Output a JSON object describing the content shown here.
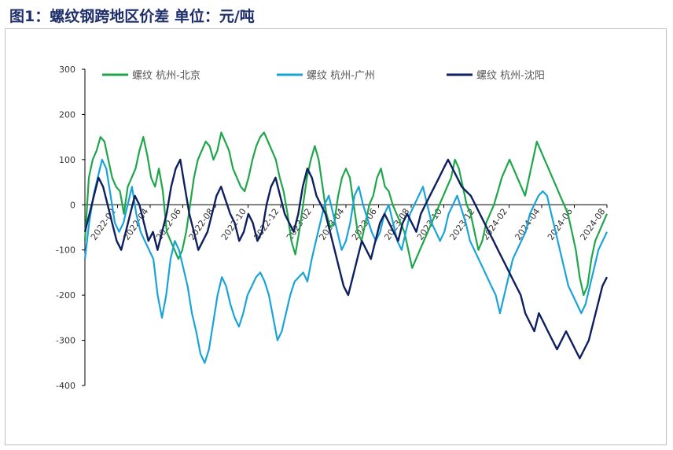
{
  "title": "图1：螺纹钢跨地区价差   单位：元/吨",
  "chart_data": {
    "type": "line",
    "ylim": [
      -400,
      300
    ],
    "yticks": [
      300,
      200,
      100,
      0,
      -100,
      -200,
      -300,
      -400
    ],
    "xticks": [
      "2022-02",
      "2022-04",
      "2022-06",
      "2022-08",
      "2022-10",
      "2022-12",
      "2023-02",
      "2023-04",
      "2023-06",
      "2023-08",
      "2023-10",
      "2023-12",
      "2024-02",
      "2024-04",
      "2024-06",
      "2024-08"
    ],
    "grid": false,
    "legend": "top",
    "series": [
      {
        "name": "螺纹 杭州-北京",
        "color": "#1fa64a",
        "values": [
          -80,
          60,
          100,
          120,
          150,
          140,
          100,
          60,
          40,
          30,
          -20,
          40,
          60,
          80,
          120,
          150,
          110,
          60,
          40,
          80,
          30,
          -60,
          -80,
          -100,
          -120,
          -100,
          -60,
          0,
          60,
          100,
          120,
          140,
          130,
          100,
          120,
          160,
          140,
          120,
          80,
          60,
          40,
          30,
          60,
          100,
          130,
          150,
          160,
          140,
          120,
          100,
          60,
          30,
          -20,
          -80,
          -110,
          -60,
          0,
          60,
          100,
          130,
          100,
          40,
          -20,
          -50,
          -40,
          20,
          60,
          80,
          60,
          0,
          -60,
          -80,
          -40,
          0,
          20,
          60,
          80,
          40,
          30,
          0,
          -20,
          -40,
          -60,
          -100,
          -140,
          -120,
          -100,
          -80,
          -60,
          -40,
          -20,
          0,
          20,
          40,
          60,
          100,
          80,
          40,
          0,
          -20,
          -60,
          -100,
          -80,
          -40,
          -20,
          0,
          30,
          60,
          80,
          100,
          80,
          60,
          40,
          20,
          60,
          100,
          140,
          120,
          100,
          80,
          60,
          40,
          20,
          0,
          -20,
          -60,
          -100,
          -160,
          -200,
          -180,
          -120,
          -80,
          -60,
          -40,
          -20
        ]
      },
      {
        "name": "螺纹 杭州-广州",
        "color": "#1aa3d9",
        "values": [
          -120,
          -40,
          20,
          60,
          100,
          80,
          20,
          -40,
          -60,
          -40,
          0,
          40,
          -20,
          -60,
          -80,
          -100,
          -120,
          -200,
          -250,
          -200,
          -120,
          -80,
          -100,
          -140,
          -180,
          -240,
          -280,
          -330,
          -350,
          -320,
          -260,
          -200,
          -160,
          -180,
          -220,
          -250,
          -270,
          -240,
          -200,
          -180,
          -160,
          -150,
          -170,
          -200,
          -250,
          -300,
          -280,
          -240,
          -200,
          -170,
          -160,
          -150,
          -170,
          -120,
          -80,
          -40,
          0,
          20,
          -20,
          -60,
          -100,
          -80,
          -40,
          20,
          40,
          0,
          -30,
          -60,
          -80,
          -60,
          -20,
          0,
          -40,
          -80,
          -100,
          -60,
          -20,
          0,
          20,
          40,
          0,
          -40,
          -60,
          -80,
          -60,
          -20,
          0,
          20,
          -10,
          -40,
          -80,
          -100,
          -120,
          -140,
          -160,
          -180,
          -200,
          -240,
          -200,
          -160,
          -120,
          -100,
          -80,
          -60,
          -20,
          0,
          20,
          30,
          20,
          -20,
          -60,
          -100,
          -140,
          -180,
          -200,
          -220,
          -240,
          -220,
          -180,
          -140,
          -100,
          -80,
          -60
        ]
      },
      {
        "name": "螺纹 杭州-沈阳",
        "color": "#0f2060",
        "values": [
          -60,
          -20,
          20,
          60,
          40,
          0,
          -40,
          -80,
          -100,
          -60,
          -20,
          20,
          0,
          -40,
          -80,
          -60,
          -100,
          -60,
          -20,
          40,
          80,
          100,
          40,
          -20,
          -60,
          -100,
          -80,
          -60,
          -20,
          20,
          40,
          10,
          -20,
          -40,
          -80,
          -60,
          -20,
          -40,
          -80,
          -60,
          0,
          40,
          60,
          20,
          -20,
          -40,
          -60,
          -20,
          40,
          80,
          60,
          20,
          0,
          -20,
          -60,
          -100,
          -140,
          -180,
          -200,
          -160,
          -120,
          -80,
          -100,
          -120,
          -80,
          -40,
          -20,
          -40,
          -60,
          -80,
          -40,
          -20,
          -40,
          -60,
          -20,
          0,
          20,
          40,
          60,
          80,
          100,
          80,
          60,
          40,
          30,
          20,
          0,
          -20,
          -40,
          -60,
          -80,
          -100,
          -120,
          -140,
          -160,
          -180,
          -200,
          -240,
          -260,
          -280,
          -240,
          -260,
          -280,
          -300,
          -320,
          -300,
          -280,
          -300,
          -320,
          -340,
          -320,
          -300,
          -260,
          -220,
          -180,
          -160
        ]
      }
    ]
  }
}
